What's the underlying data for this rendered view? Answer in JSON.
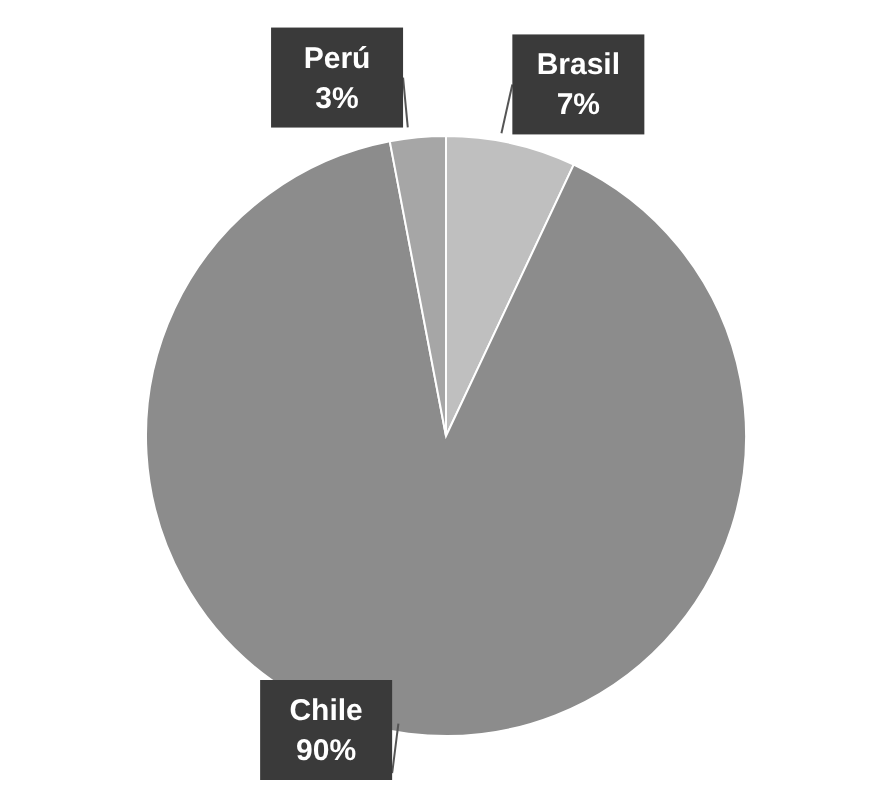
{
  "chart_data": {
    "type": "pie",
    "categories": [
      "Brasil",
      "Chile",
      "Perú"
    ],
    "values": [
      7,
      90,
      3
    ],
    "colors": [
      "#bfbfbf",
      "#8c8c8c",
      "#a6a6a6"
    ],
    "value_labels": [
      "7%",
      "90%",
      "3%"
    ],
    "legend": false
  }
}
